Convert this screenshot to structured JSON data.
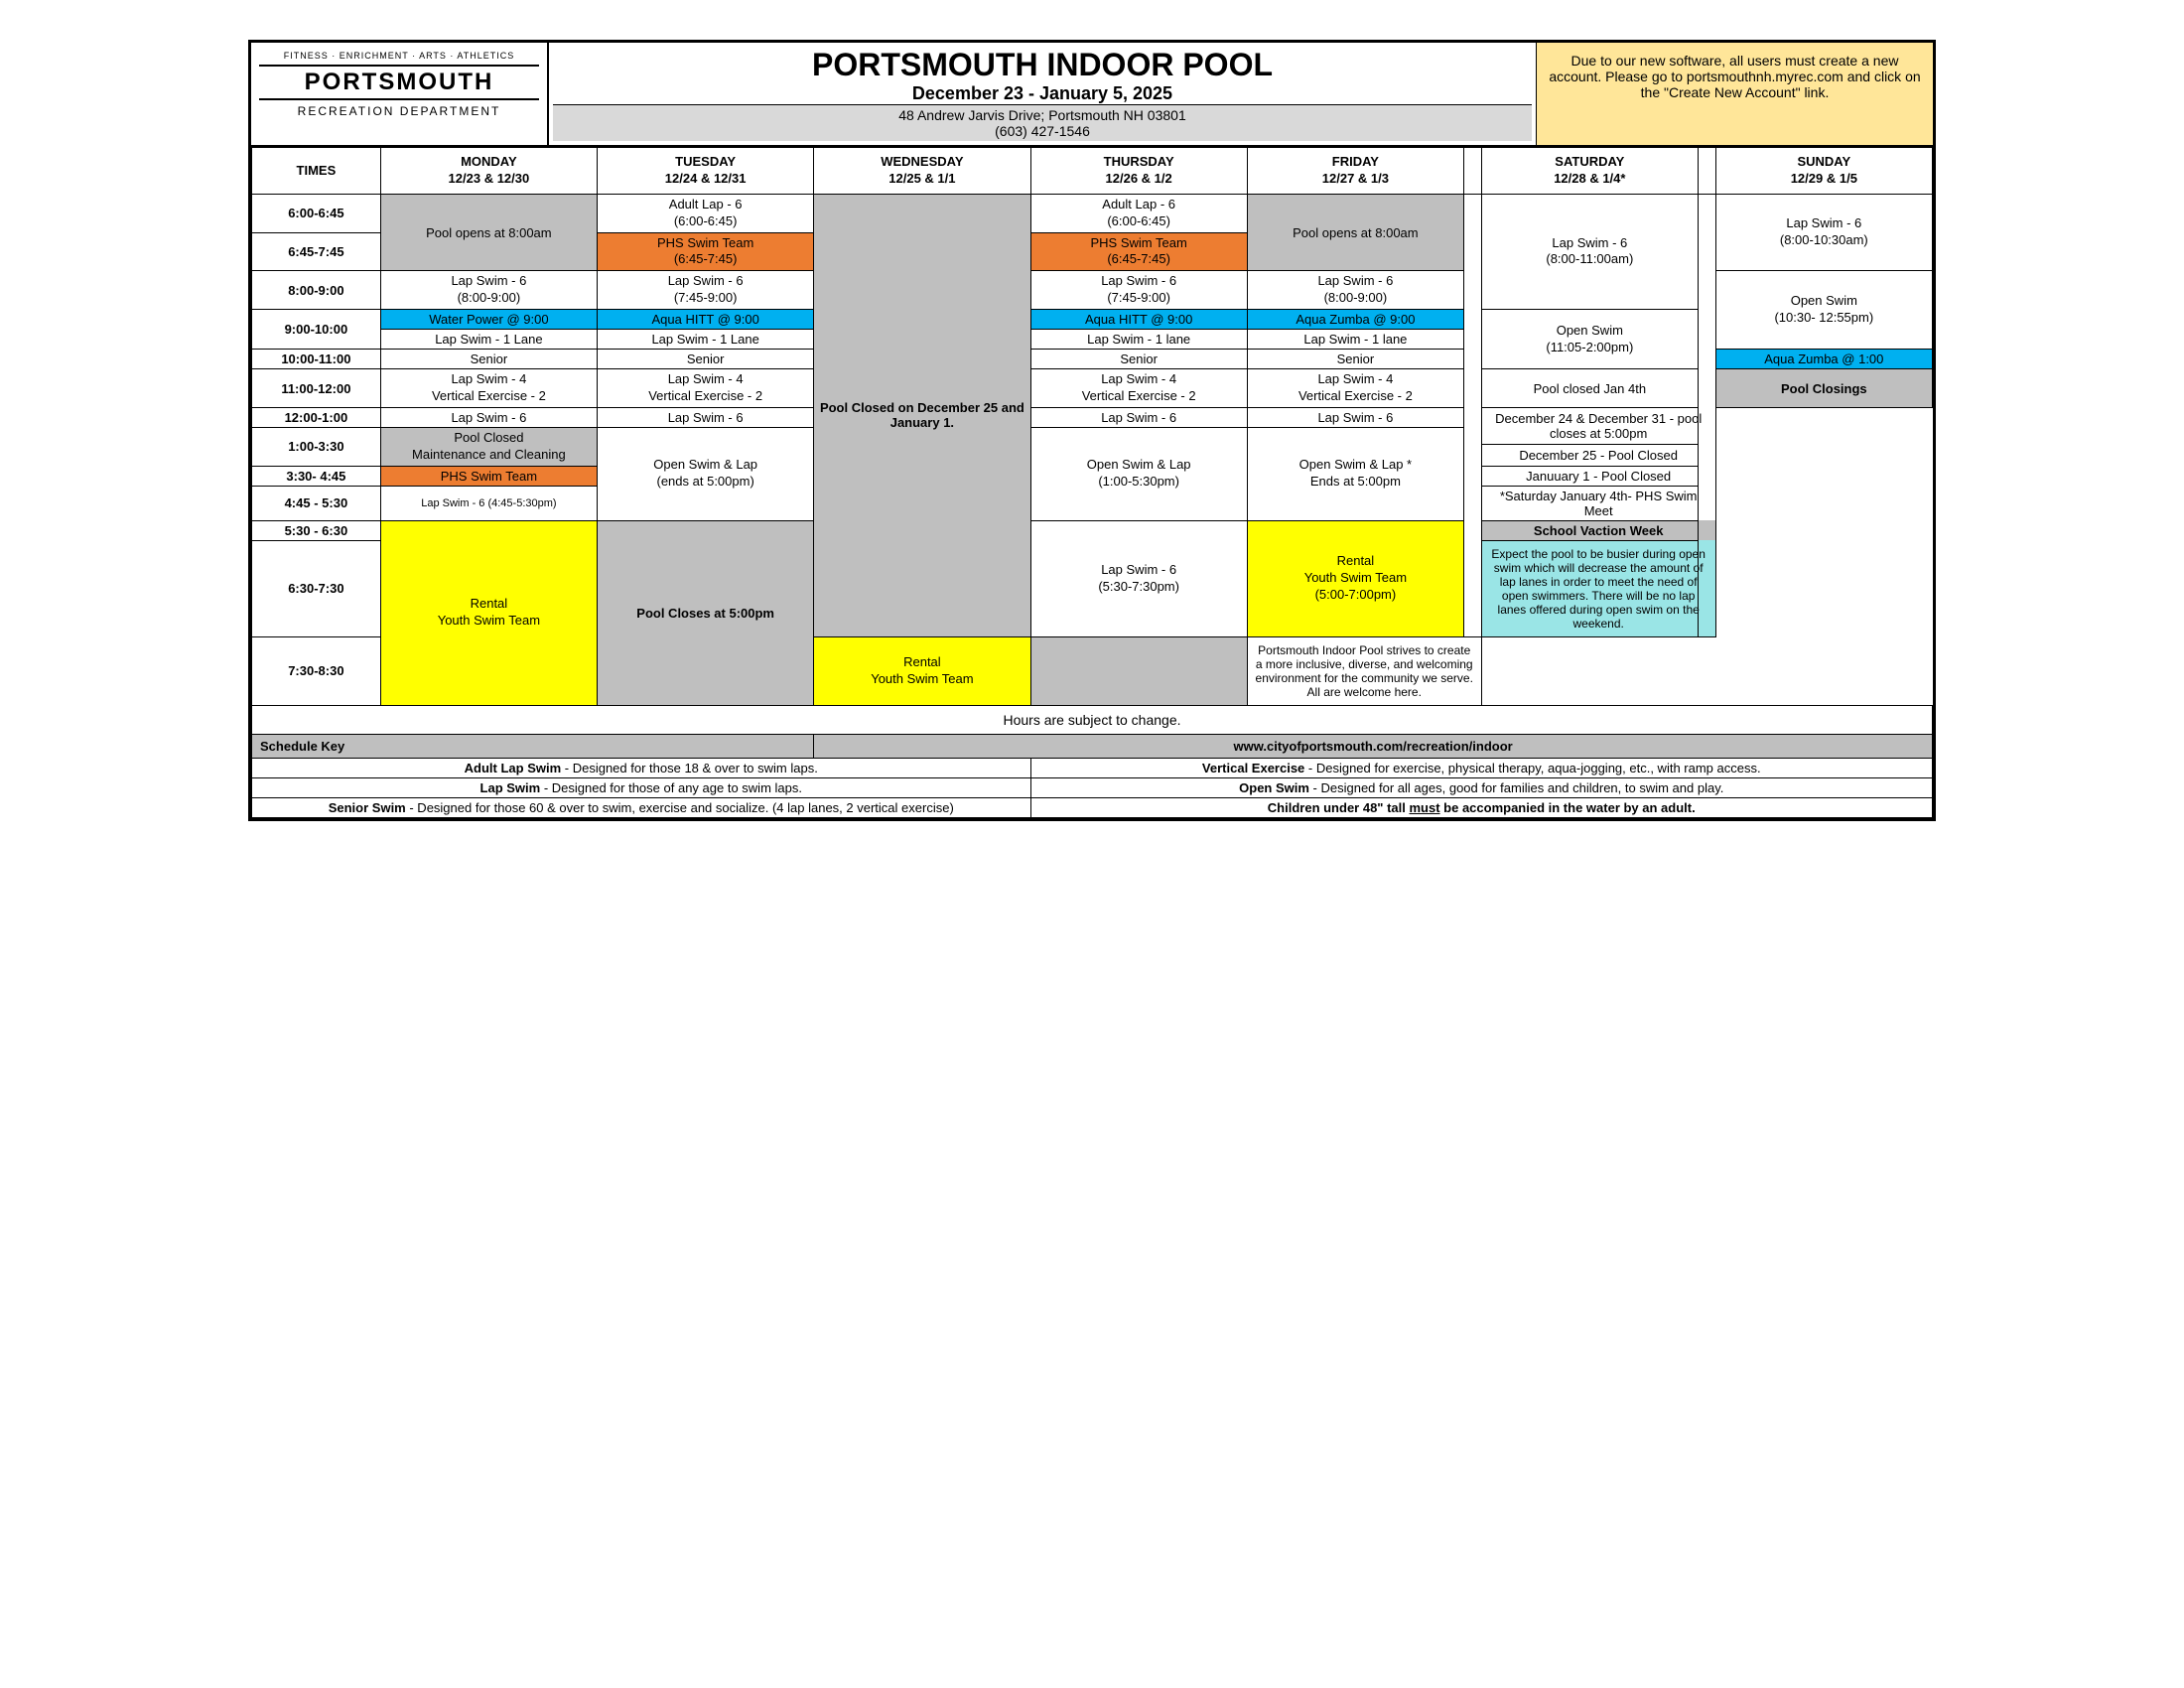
{
  "logo": {
    "tag": "FITNESS · ENRICHMENT · ARTS · ATHLETICS",
    "main": "PORTSMOUTH",
    "sub": "RECREATION DEPARTMENT"
  },
  "header": {
    "title": "PORTSMOUTH INDOOR POOL",
    "dates": "December 23 - January 5, 2025",
    "address": "48 Andrew Jarvis Drive; Portsmouth NH 03801",
    "phone": "(603) 427-1546"
  },
  "notice": "Due to our new software, all users must create a new account.  Please go to portsmouthnh.myrec.com and click on the \"Create New Account\" link.",
  "columns": {
    "times": "TIMES",
    "mon": "MONDAY",
    "mon_dates": "12/23 & 12/30",
    "tue": "TUESDAY",
    "tue_dates": "12/24 & 12/31",
    "wed": "WEDNESDAY",
    "wed_dates": "12/25 & 1/1",
    "thu": "THURSDAY",
    "thu_dates": "12/26 &  1/2",
    "fri": "FRIDAY",
    "fri_dates": "12/27 & 1/3",
    "sat": "SATURDAY",
    "sat_dates": "12/28  & 1/4*",
    "sun": "SUNDAY",
    "sun_dates": "12/29 & 1/5"
  },
  "times": {
    "r1": "6:00-6:45",
    "r2": "6:45-7:45",
    "r3": "8:00-9:00",
    "r4": "9:00-10:00",
    "r5": "10:00-11:00",
    "r6": "11:00-12:00",
    "r7": "12:00-1:00",
    "r8": "1:00-3:30",
    "r9": "3:30- 4:45",
    "r10": "4:45 - 5:30",
    "r11": "5:30 - 6:30",
    "r12": "6:30-7:30",
    "r13": "7:30-8:30"
  },
  "cells": {
    "mon_open8": "Pool opens at 8:00am",
    "adult_lap6": "Adult Lap - 6",
    "adult_lap6_time": "(6:00-6:45)",
    "phs_swim": "PHS Swim Team",
    "phs_time": "(6:45-7:45)",
    "lap6": "Lap Swim - 6",
    "lap6_89": "(8:00-9:00)",
    "lap6_7459": "(7:45-9:00)",
    "water_power": "Water Power @ 9:00",
    "aqua_hitt": "Aqua HITT @ 9:00",
    "aqua_zumba": "Aqua Zumba @ 9:00",
    "lap1": "Lap Swim - 1 Lane",
    "lap1_lc": "Lap Swim - 1 lane",
    "senior": "Senior",
    "lap4": "Lap Swim -  4",
    "lap4b": "Lap Swim - 4",
    "vert2": "Vertical Exercise - 2",
    "pool_closed_wed": "Pool Closed on December 25 and January 1.",
    "fri_open8": "Pool opens at 8:00am",
    "sat_lap": "Lap Swim - 6",
    "sat_lap_time": "(8:00-11:00am)",
    "sun_lap": "Lap Swim - 6",
    "sun_lap_time": "(8:00-10:30am)",
    "sat_open": "Open Swim",
    "sat_open_time": "(11:05-2:00pm)",
    "sun_open": "Open Swim",
    "sun_open_time": "(10:30- 12:55pm)",
    "pool_closed_jan4": "Pool closed Jan 4th",
    "aqua_zumba1": "Aqua Zumba @ 1:00",
    "closings_hdr": "Pool Closings",
    "closing1": "December 24 & December 31 - pool closes  at 5:00pm",
    "closing2": "December 25 - Pool Closed",
    "closing3": "Januuary 1 - Pool Closed",
    "closing4": "*Saturday January 4th- PHS Swim Meet",
    "vacation_hdr": "School Vaction Week",
    "vacation_note": "Expect the pool to be busier during open swim which will decrease the amount of lap lanes in order to meet the need of open swimmers. There will be no lap lanes offered during open swim on the weekend.",
    "inclusive_note": "Portsmouth Indoor Pool strives to create a more inclusive, diverse, and welcoming environment for the community we serve. All are welcome here.",
    "maint": "Pool Closed",
    "maint2": "Maintenance and Cleaning",
    "open_swim_lap": "Open Swim & Lap",
    "ends5": "(ends at 5:00pm)",
    "open_thu_time": "(1:00-5:30pm)",
    "fri_open_lap": "Open Swim & Lap  *",
    "fri_ends5": "Ends at 5:00pm",
    "phs_swim2": "PHS Swim Team",
    "lap6_445": "Lap Swim - 6 (4:45-5:30pm)",
    "rental": "Rental",
    "youth_team": "Youth Swim Team",
    "pool_closes5": "Pool Closes at 5:00pm",
    "thu_lap6": "Lap Swim - 6",
    "thu_lap6_time": "(5:30-7:30pm)",
    "fri_rental_time": "(5:00-7:00pm)"
  },
  "footer": {
    "hours_note": "Hours are subject to change.",
    "key_hdr": "Schedule Key",
    "url": "www.cityofportsmouth.com/recreation/indoor",
    "adult_lap_b": "Adult Lap Swim",
    "adult_lap": " - Designed for those 18 & over to swim laps.",
    "vert_b": "Vertical Exercise",
    "vert": " - Designed for exercise, physical therapy, aqua-jogging, etc., with ramp access.",
    "lap_b": "Lap Swim",
    "lap": " - Designed for those of any age to swim laps.",
    "open_b": "Open Swim",
    "open": " - Designed for all ages, good for families and children, to swim and play.",
    "senior_b": "Senior Swim",
    "senior": " - Designed for those 60 & over to swim, exercise and socialize. (4 lap lanes, 2 vertical exercise)",
    "children_pre": "Children under 48\" tall ",
    "children_u": "must",
    "children_post": " be accompanied in the water by an adult."
  },
  "colors": {
    "gray": "#bfbfbf",
    "orange": "#ed7d31",
    "blue": "#00b0f0",
    "yellow": "#ffff00",
    "cyan": "#9ae5e6",
    "notice_bg": "#ffe699"
  }
}
